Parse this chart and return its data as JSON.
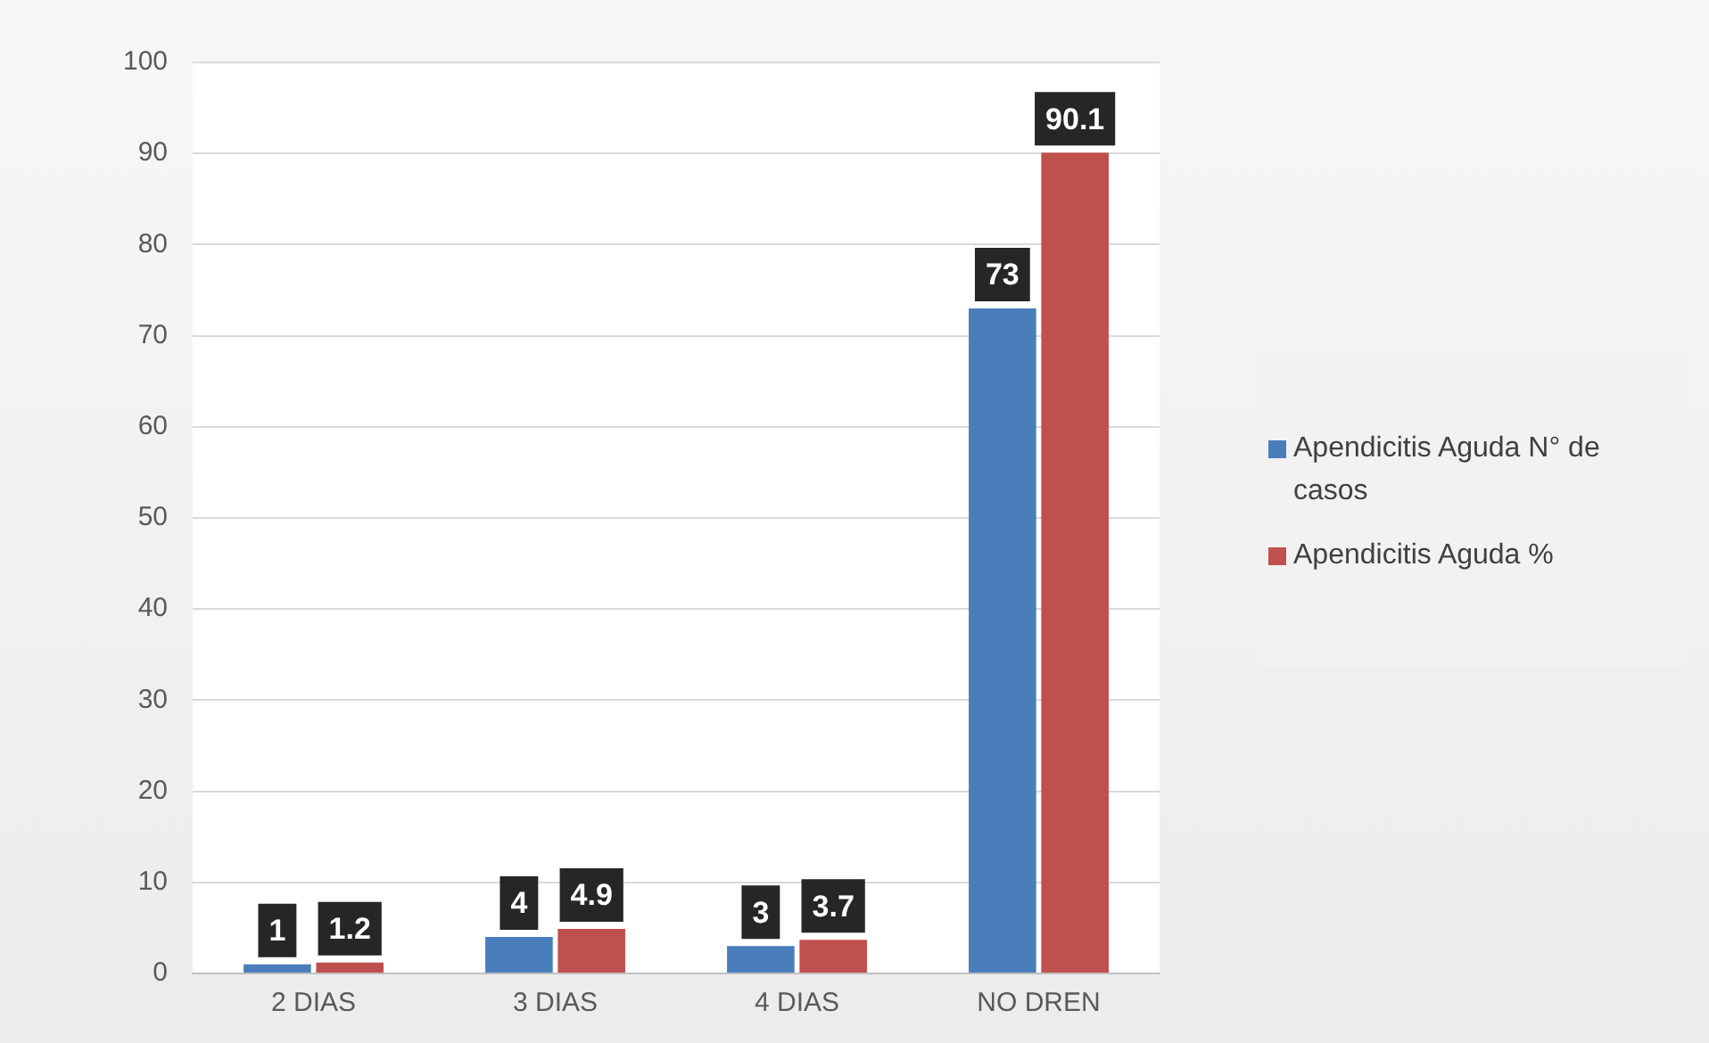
{
  "chart_data": {
    "type": "bar",
    "categories": [
      "2 DIAS",
      "3 DIAS",
      "4 DIAS",
      "NO DREN"
    ],
    "series": [
      {
        "name": "Apendicitis Aguda N° de casos",
        "color": "#4a7ebb",
        "values": [
          1,
          4,
          3,
          73
        ]
      },
      {
        "name": "Apendicitis Aguda %",
        "color": "#c0504d",
        "values": [
          1.2,
          4.9,
          3.7,
          90.1
        ]
      }
    ],
    "ylim": [
      0,
      100
    ],
    "yticks": [
      0,
      10,
      20,
      30,
      40,
      50,
      60,
      70,
      80,
      90,
      100
    ],
    "grid": "y",
    "legend": "right",
    "data_labels": true
  }
}
